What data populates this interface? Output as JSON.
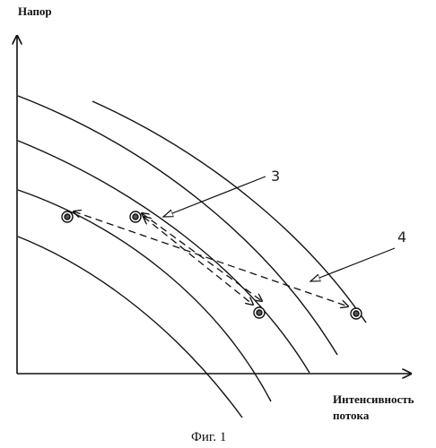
{
  "figure": {
    "y_axis_label": "Напор",
    "x_axis_label_line1": "Интенсивность",
    "x_axis_label_line2": "потока",
    "caption": "Фиг. 1",
    "reference_numerals": [
      "3",
      "4"
    ]
  },
  "colors": {
    "ink": "#111111",
    "background": "#ffffff"
  },
  "diagram": {
    "curve_count": 5,
    "operating_point_count": 4,
    "dashed_transitions": [
      {
        "label": "3",
        "between": "points on adjacent curves",
        "arrow": "both-ends"
      },
      {
        "label": "4",
        "between": "points on distant curves",
        "arrow": "both-ends"
      }
    ]
  }
}
